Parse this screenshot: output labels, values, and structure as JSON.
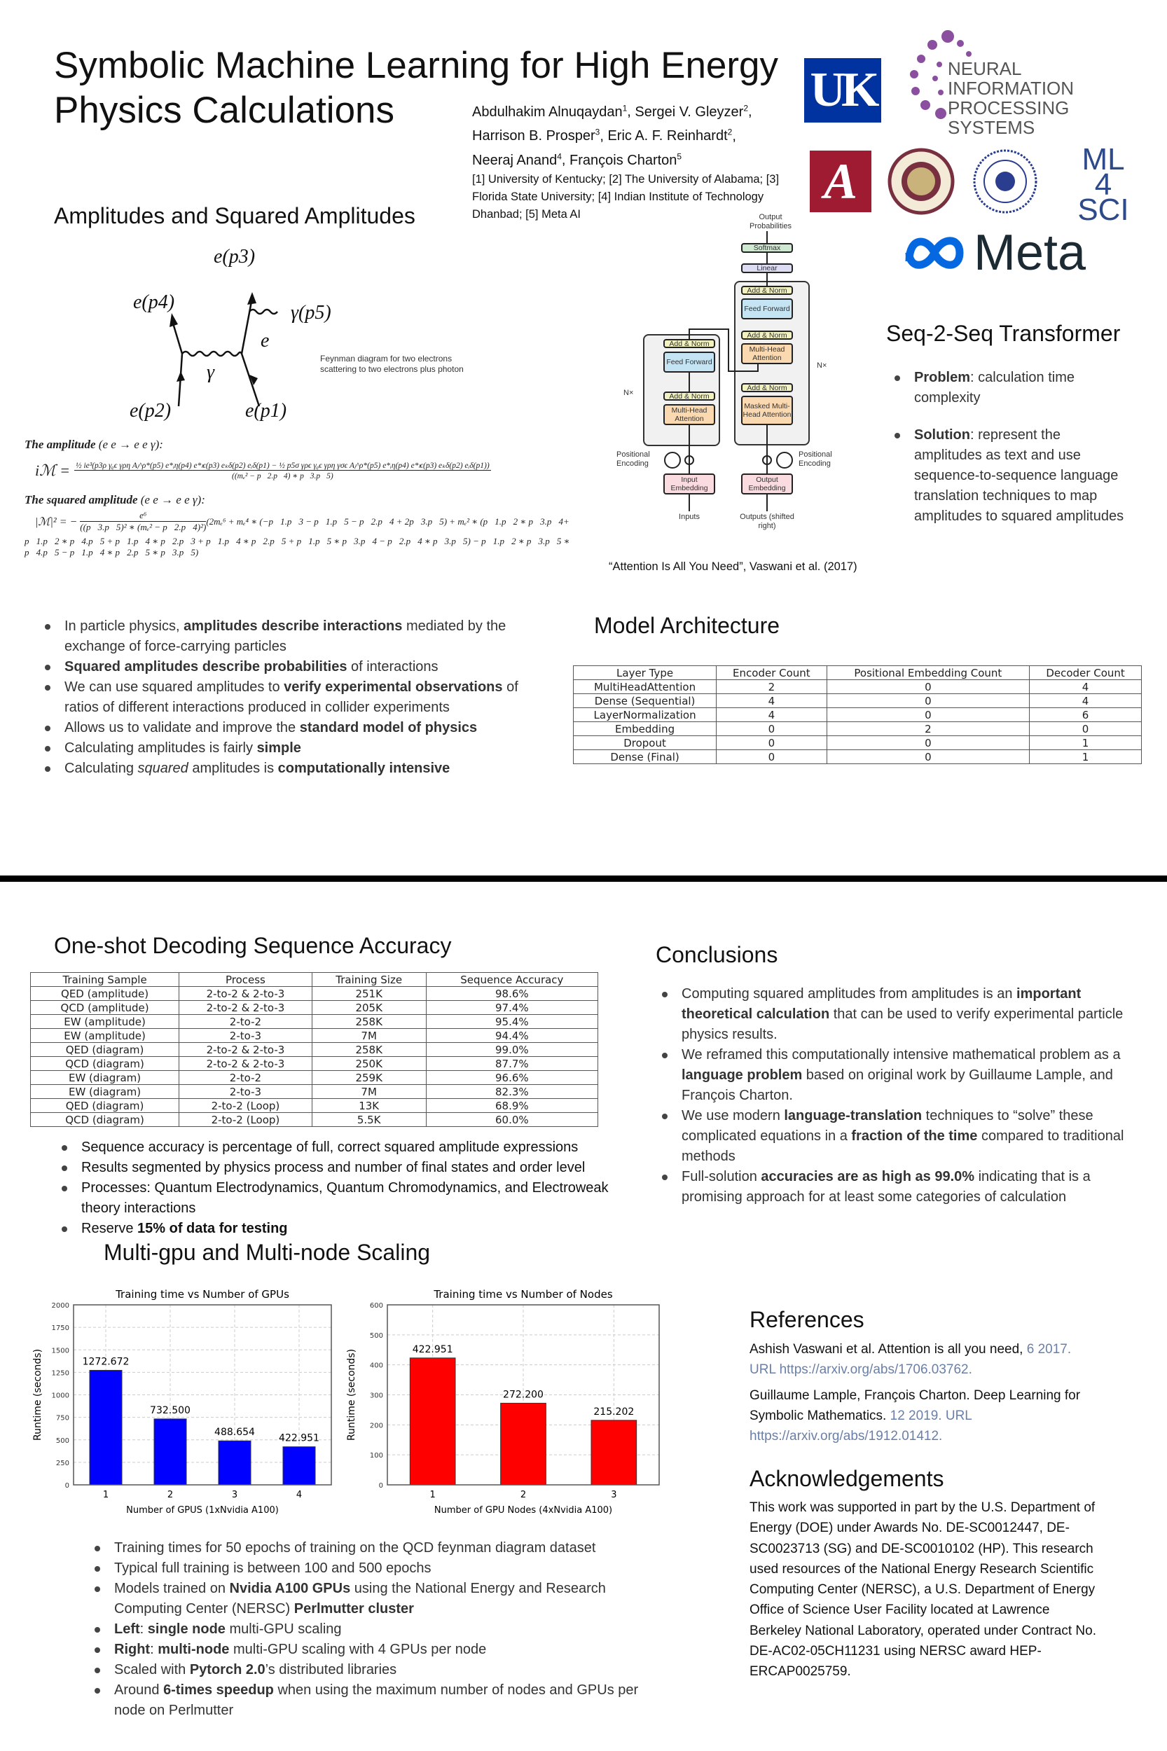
{
  "header": {
    "title": "Symbolic Machine Learning for High Energy Physics Calculations",
    "authors": [
      {
        "name": "Abdulhakim Alnuqaydan",
        "sup": "1"
      },
      {
        "name": "Sergei V. Gleyzer",
        "sup": "2"
      },
      {
        "name": "Harrison B. Prosper",
        "sup": "3"
      },
      {
        "name": "Eric A. F. Reinhardt",
        "sup": "2"
      },
      {
        "name": "Neeraj Anand",
        "sup": "4"
      },
      {
        "name": "François Charton",
        "sup": "5"
      }
    ],
    "affiliations": "[1] University of Kentucky; [2] The University of Alabama; [3] Florida State University; [4] Indian Institute of Technology Dhanbad; [5] Meta AI",
    "logos": {
      "uk": "UK",
      "neurips": "NEURAL INFORMATION PROCESSING SYSTEMS",
      "alabama": "A",
      "fsu": "FLORIDA STATE UNIVERSITY 1851",
      "ml4sci": "ML 4 SCI",
      "meta": "Meta"
    }
  },
  "amplitudes": {
    "heading": "Amplitudes and Squared Amplitudes",
    "feynman": {
      "labels": [
        "e(p3)",
        "e(p4)",
        "γ(p5)",
        "e",
        "γ",
        "e(p2)",
        "e(p1)"
      ],
      "caption": "Feynman diagram for two electrons scattering to two electrons plus photon"
    },
    "amplitude_label": "The amplitude",
    "amplitude_process": "(e e → e e γ):",
    "amplitude_eq_num": "½ ie³(p3ρ γᵨϵ γρη Aⱼ^ρ*(p5) e*ᵢη(p4) e*ₗϵ(p3) eₖδ(p2) eᵢδ(p1) − ½ p5σ γρϵ γᵨϵ γρη γσϵ Aⱼ^ρ*(p5) e*ᵢη(p4) e*ₗϵ(p3) eₖδ(p2) eᵢδ(p1))",
    "amplitude_eq_den": "((mₑ² − p⃗2.p⃗4) ∗ p⃗3.p⃗5)",
    "amplitude_lhs": "iℳ =",
    "squared_label": "The squared amplitude",
    "squared_process": "(e e → e e γ):",
    "squared_lhs": "|ℳ|² = −",
    "squared_num": "e⁶",
    "squared_den": "((p⃗3.p⃗5)² ∗ (mₑ² − p⃗2.p⃗4)²)",
    "squared_line1": "(2mₑ⁶ + mₑ⁴ ∗ (−p⃗1.p⃗3 − p⃗1.p⃗5 − p⃗2.p⃗4 + 2p⃗3.p⃗5) + mₑ² ∗ (p⃗1.p⃗2 ∗ p⃗3.p⃗4+",
    "squared_line2": "p⃗1.p⃗2 ∗ p⃗4.p⃗5 + p⃗1.p⃗4 ∗ p⃗2.p⃗3 + p⃗1.p⃗4 ∗ p⃗2.p⃗5 + p⃗1.p⃗5 ∗ p⃗3.p⃗4 − p⃗2.p⃗4 ∗ p⃗3.p⃗5) − p⃗1.p⃗2 ∗ p⃗3.p⃗5 ∗ p⃗4.p⃗5 − p⃗1.p⃗4 ∗ p⃗2.p⃗5 ∗ p⃗3.p⃗5)"
  },
  "transformer": {
    "output_probs": "Output Probabilities",
    "softmax": "Softmax",
    "linear": "Linear",
    "add_norm": "Add & Norm",
    "feed_forward": "Feed Forward",
    "mha": "Multi-Head Attention",
    "masked_mha": "Masked Multi-Head Attention",
    "nx": "N×",
    "pos_enc": "Positional Encoding",
    "input_emb": "Input Embedding",
    "output_emb": "Output Embedding",
    "inputs": "Inputs",
    "outputs": "Outputs (shifted right)",
    "caption": "“Attention Is All You Need”, Vaswani et al. (2017)"
  },
  "seq2seq": {
    "heading": "Seq-2-Seq Transformer",
    "items": [
      {
        "bold": "Problem",
        "text": ": calculation time complexity"
      },
      {
        "bold": "Solution",
        "text": ": represent the amplitudes as text and use sequence-to-sequence language translation techniques to map amplitudes to squared amplitudes"
      }
    ]
  },
  "intro_bullets": [
    [
      {
        "t": "In particle physics, "
      },
      {
        "b": "amplitudes describe interactions"
      },
      {
        "t": " mediated by the exchange of force-carrying particles"
      }
    ],
    [
      {
        "b": "Squared amplitudes describe probabilities"
      },
      {
        "t": " of interactions"
      }
    ],
    [
      {
        "t": "We can use squared amplitudes to "
      },
      {
        "b": "verify experimental observations"
      },
      {
        "t": " of ratios of different interactions produced in collider experiments"
      }
    ],
    [
      {
        "t": "Allows us to validate and improve the "
      },
      {
        "b": "standard model of physics"
      }
    ],
    [
      {
        "t": "Calculating amplitudes is fairly "
      },
      {
        "b": "simple"
      }
    ],
    [
      {
        "t": "Calculating  "
      },
      {
        "i": "squared"
      },
      {
        "t": " amplitudes is "
      },
      {
        "b": "computationally intensive"
      }
    ]
  ],
  "model_arch": {
    "heading": "Model Architecture",
    "columns": [
      "Layer Type",
      "Encoder Count",
      "Positional Embedding Count",
      "Decoder Count"
    ],
    "rows": [
      [
        "MultiHeadAttention",
        "2",
        "0",
        "4"
      ],
      [
        "Dense (Sequential)",
        "4",
        "0",
        "4"
      ],
      [
        "LayerNormalization",
        "4",
        "0",
        "6"
      ],
      [
        "Embedding",
        "0",
        "2",
        "0"
      ],
      [
        "Dropout",
        "0",
        "0",
        "1"
      ],
      [
        "Dense (Final)",
        "0",
        "0",
        "1"
      ]
    ]
  },
  "accuracy": {
    "heading": "One-shot Decoding Sequence Accuracy",
    "columns": [
      "Training Sample",
      "Process",
      "Training Size",
      "Sequence Accuracy"
    ],
    "rows": [
      [
        "QED (amplitude)",
        "2-to-2 & 2-to-3",
        "251K",
        "98.6%"
      ],
      [
        "QCD (amplitude)",
        "2-to-2 & 2-to-3",
        "205K",
        "97.4%"
      ],
      [
        "EW (amplitude)",
        "2-to-2",
        "258K",
        "95.4%"
      ],
      [
        "EW (amplitude)",
        "2-to-3",
        "7M",
        "94.4%"
      ],
      [
        "QED (diagram)",
        "2-to-2 & 2-to-3",
        "258K",
        "99.0%"
      ],
      [
        "QCD (diagram)",
        "2-to-2 & 2-to-3",
        "250K",
        "87.7%"
      ],
      [
        "EW (diagram)",
        "2-to-2",
        "259K",
        "96.6%"
      ],
      [
        "EW (diagram)",
        "2-to-3",
        "7M",
        "82.3%"
      ],
      [
        "QED (diagram)",
        "2-to-2 (Loop)",
        "13K",
        "68.9%"
      ],
      [
        "QCD (diagram)",
        "2-to-2 (Loop)",
        "5.5K",
        "60.0%"
      ]
    ],
    "bullets": [
      [
        {
          "t": "Sequence accuracy is percentage of full, correct squared amplitude expressions"
        }
      ],
      [
        {
          "t": "Results segmented by physics process and number of final states and order level"
        }
      ],
      [
        {
          "t": "Processes: Quantum Electrodynamics, Quantum Chromodynamics, and Electroweak theory interactions"
        }
      ],
      [
        {
          "t": "Reserve "
        },
        {
          "b": "15% of data for testing"
        }
      ]
    ]
  },
  "conclusions": {
    "heading": "Conclusions",
    "bullets": [
      [
        {
          "t": "Computing squared amplitudes from amplitudes is an "
        },
        {
          "b": "important theoretical calculation"
        },
        {
          "t": " that can be used to verify experimental particle physics results."
        }
      ],
      [
        {
          "t": "We reframed this computationally intensive mathematical problem as a "
        },
        {
          "b": "language problem"
        },
        {
          "t": " based on original work by Guillaume Lample, and François Charton."
        }
      ],
      [
        {
          "t": "We use modern "
        },
        {
          "b": "language-translation"
        },
        {
          "t": " techniques to “solve” these complicated equations in a "
        },
        {
          "b": "fraction of the time"
        },
        {
          "t": " compared to traditional methods"
        }
      ],
      [
        {
          "t": "Full-solution "
        },
        {
          "b": "accuracies are as high as 99.0%"
        },
        {
          "t": " indicating that is a promising approach for at least some categories of calculation"
        }
      ]
    ]
  },
  "scaling": {
    "heading": "Multi-gpu and Multi-node Scaling",
    "bullets": [
      [
        {
          "t": "Training times for 50 epochs of training on the QCD feynman diagram dataset"
        }
      ],
      [
        {
          "t": "Typical full training is between 100 and 500 epochs"
        }
      ],
      [
        {
          "t": "Models trained on "
        },
        {
          "b": "Nvidia A100 GPUs"
        },
        {
          "t": " using the National Energy and Research Computing Center (NERSC) "
        },
        {
          "b": "Perlmutter cluster"
        }
      ],
      [
        {
          "b": "Left"
        },
        {
          "t": ": "
        },
        {
          "b": "single node"
        },
        {
          "t": " multi-GPU scaling"
        }
      ],
      [
        {
          "b": "Right"
        },
        {
          "t": ": "
        },
        {
          "b": "multi-node"
        },
        {
          "t": " multi-GPU scaling with 4 GPUs per node"
        }
      ],
      [
        {
          "t": "Scaled with "
        },
        {
          "b": "Pytorch 2.0"
        },
        {
          "t": "’s distributed libraries"
        }
      ],
      [
        {
          "t": "Around "
        },
        {
          "b": "6-times speedup"
        },
        {
          "t": " when using the maximum number of nodes and GPUs per node on Perlmutter"
        }
      ]
    ]
  },
  "chart_data": [
    {
      "type": "bar",
      "title": "Training time vs Number of GPUs",
      "xlabel": "Number of GPUS (1xNvidia A100)",
      "ylabel": "Runtime (seconds)",
      "categories": [
        "1",
        "2",
        "3",
        "4"
      ],
      "values": [
        1272.672,
        732.5,
        488.654,
        422.951
      ],
      "labels": [
        "1272.672",
        "732.500",
        "488.654",
        "422.951"
      ],
      "ylim": [
        0,
        2000
      ],
      "yticks": [
        "0",
        "250",
        "500",
        "750",
        "1000",
        "1250",
        "1500",
        "1750",
        "2000"
      ],
      "color": "#0000ff",
      "grid": true
    },
    {
      "type": "bar",
      "title": "Training time vs Number of Nodes",
      "xlabel": "Number of GPU Nodes (4xNvidia A100)",
      "ylabel": "Runtime (seconds)",
      "categories": [
        "1",
        "2",
        "3"
      ],
      "values": [
        422.951,
        272.2,
        215.202
      ],
      "labels": [
        "422.951",
        "272.200",
        "215.202"
      ],
      "ylim": [
        0,
        600
      ],
      "yticks": [
        "0",
        "100",
        "200",
        "300",
        "400",
        "500",
        "600"
      ],
      "color": "#ff0000",
      "grid": true
    }
  ],
  "references": {
    "heading": "References",
    "items": [
      {
        "text": "Ashish Vaswani et al. Attention is all you need, ",
        "link": "6 2017. URL https://arxiv.org/abs/1706.03762."
      },
      {
        "text": "Guillaume Lample, François Charton. Deep Learning for Symbolic Mathematics. ",
        "link": "12 2019. URL https://arxiv.org/abs/1912.01412."
      }
    ]
  },
  "acknowledgements": {
    "heading": "Acknowledgements",
    "text": "This work was supported in part by the U.S. Department of Energy (DOE) under Awards No. DE-SC0012447, DE-SC0023713 (SG) and DE-SC0010102 (HP). This research used resources of the National Energy Research Scientific Computing Center (NERSC), a U.S. Department of Energy Office of Science User Facility located at Lawrence Berkeley National Laboratory, operated under Contract No. DE-AC02-05CH11231 using NERSC award HEP-ERCAP0025759."
  }
}
